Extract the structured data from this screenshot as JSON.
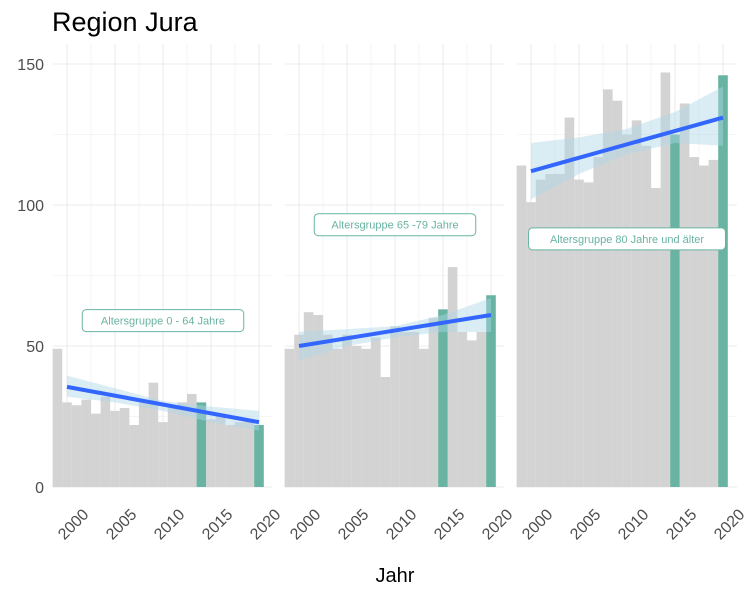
{
  "chart_data": {
    "type": "bar",
    "title": "Region Jura",
    "xlabel": "Jahr",
    "ylabel": "",
    "ylim": [
      0,
      150
    ],
    "xlim": [
      1999,
      2021
    ],
    "y_ticks": [
      0,
      50,
      100,
      150
    ],
    "x_ticks": [
      2000,
      2005,
      2010,
      2015,
      2020
    ],
    "grid": true,
    "colors": {
      "bar": "#d3d3d3",
      "highlight": "#69b3a2",
      "trend": "#3366ff",
      "band": "#add8e6",
      "grid": "#ebebeb"
    },
    "facets": [
      {
        "annotation": "Altersgruppe 0 - 64 Jahre",
        "annotation_pos": {
          "x": 2010,
          "y": 59
        },
        "years": [
          1999,
          2000,
          2001,
          2002,
          2003,
          2004,
          2005,
          2006,
          2007,
          2008,
          2009,
          2010,
          2011,
          2012,
          2013,
          2014,
          2015,
          2016,
          2017,
          2018,
          2019,
          2020
        ],
        "values": [
          49,
          30,
          29,
          31,
          26,
          32,
          27,
          28,
          22,
          30,
          37,
          23,
          29,
          30,
          33,
          30,
          24,
          25,
          22,
          23,
          24,
          22
        ],
        "highlight_years": [
          2014,
          2020
        ],
        "trend": {
          "x": [
            2000,
            2020
          ],
          "y": [
            35.5,
            23
          ]
        },
        "band": {
          "x": [
            2000,
            2005,
            2010,
            2015,
            2020
          ],
          "lower": [
            32,
            30,
            27,
            23,
            20
          ],
          "upper": [
            39.5,
            35,
            30.5,
            28.5,
            27
          ]
        }
      },
      {
        "annotation": "Altersgruppe 65 -79 Jahre",
        "annotation_pos": {
          "x": 2010,
          "y": 93
        },
        "years": [
          1999,
          2000,
          2001,
          2002,
          2003,
          2004,
          2005,
          2006,
          2007,
          2008,
          2009,
          2010,
          2011,
          2012,
          2013,
          2014,
          2015,
          2016,
          2017,
          2018,
          2019,
          2020
        ],
        "values": [
          49,
          54,
          62,
          61,
          54,
          49,
          54,
          50,
          49,
          53,
          39,
          57,
          55,
          55,
          49,
          60,
          63,
          78,
          55,
          52,
          55,
          68
        ],
        "highlight_years": [
          2015,
          2020
        ],
        "trend": {
          "x": [
            2000,
            2020
          ],
          "y": [
            50,
            61
          ]
        },
        "band": {
          "x": [
            2000,
            2005,
            2010,
            2015,
            2020
          ],
          "lower": [
            45,
            50,
            53,
            55,
            55
          ],
          "upper": [
            55,
            56,
            57,
            61,
            67
          ]
        }
      },
      {
        "annotation": "Altersgruppe 80 Jahre und älter",
        "annotation_pos": {
          "x": 2010,
          "y": 88
        },
        "years": [
          1999,
          2000,
          2001,
          2002,
          2003,
          2004,
          2005,
          2006,
          2007,
          2008,
          2009,
          2010,
          2011,
          2012,
          2013,
          2014,
          2015,
          2016,
          2017,
          2018,
          2019,
          2020
        ],
        "values": [
          114,
          101,
          109,
          111,
          111,
          131,
          109,
          108,
          117,
          141,
          137,
          125,
          130,
          121,
          106,
          147,
          125,
          136,
          117,
          114,
          116,
          146
        ],
        "highlight_years": [
          2015,
          2020
        ],
        "trend": {
          "x": [
            2000,
            2020
          ],
          "y": [
            112,
            131
          ]
        },
        "band": {
          "x": [
            2000,
            2005,
            2010,
            2015,
            2020
          ],
          "lower": [
            102,
            111,
            118,
            122,
            121
          ],
          "upper": [
            122,
            124,
            127,
            133,
            142
          ]
        }
      }
    ]
  }
}
